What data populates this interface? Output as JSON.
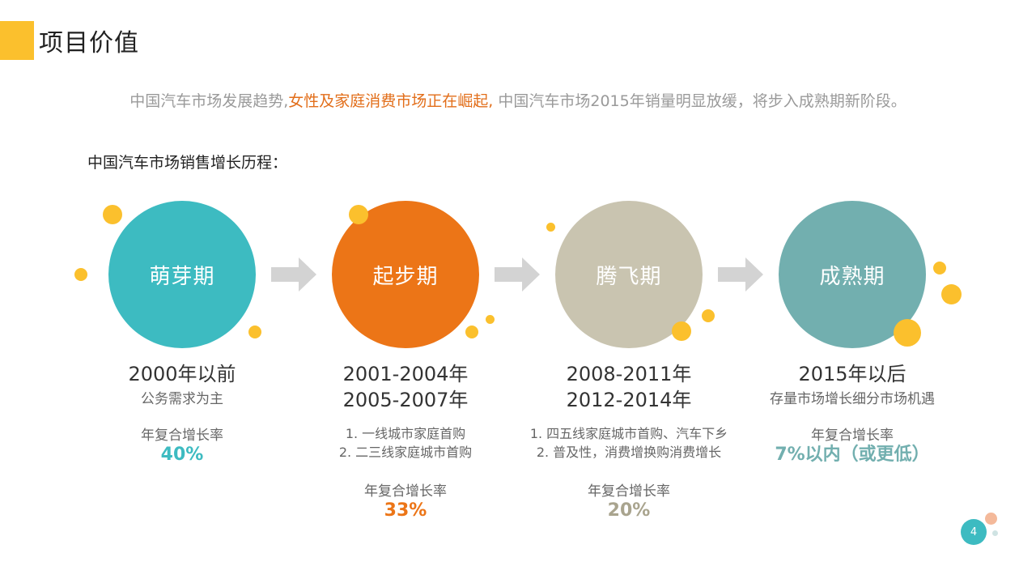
{
  "title": "项目价值",
  "intro": {
    "part1": "中国汽车市场发展趋势,",
    "highlight": "女性及家庭消费市场正在崛起,",
    "part2": " 中国汽车市场2015年销量明显放缓，将步入成熟期新阶段。"
  },
  "history_label": "中国汽车市场销售增长历程：",
  "stages": [
    {
      "name": "萌芽期",
      "color": "#3DBBC1",
      "period": [
        "2000年以前"
      ],
      "desc": "公务需求为主",
      "list": [],
      "rate_label": "年复合增长率",
      "rate": "40%"
    },
    {
      "name": "起步期",
      "color": "#EC7517",
      "period": [
        "2001-2004年",
        "2005-2007年"
      ],
      "desc": "",
      "list": [
        "1. 一线城市家庭首购",
        "2. 二三线家庭城市首购"
      ],
      "rate_label": "年复合增长率",
      "rate": "33%"
    },
    {
      "name": "腾飞期",
      "color": "#C9C4B0",
      "period": [
        "2008-2011年",
        "2012-2014年"
      ],
      "desc": "",
      "list": [
        "1. 四五线家庭城市首购、汽车下乡",
        "2. 普及性，消费增换购消费增长"
      ],
      "rate_label": "年复合增长率",
      "rate": "20%",
      "rate_color": "#A9A48E"
    },
    {
      "name": "成熟期",
      "color": "#72AFAF",
      "period": [
        "2015年以后"
      ],
      "desc": "存量市场增长细分市场机遇",
      "list": [],
      "rate_label": "年复合增长率",
      "rate": "7%以内（或更低）"
    }
  ],
  "arrow_color": "#D3D3D3",
  "accent_color": "#FBC02D",
  "page_number": "4"
}
